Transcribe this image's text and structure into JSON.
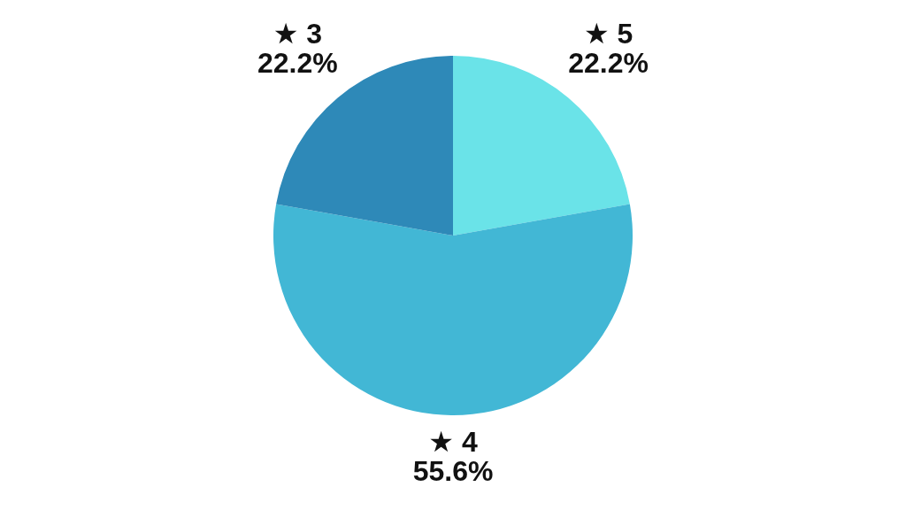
{
  "chart_data": {
    "type": "pie",
    "categories": [
      "★ 5",
      "★ 4",
      "★ 3"
    ],
    "values": [
      22.2,
      55.6,
      22.2
    ],
    "colors": [
      "#6ae3e8",
      "#42b7d5",
      "#2e89b8"
    ],
    "value_labels": [
      "22.2%",
      "55.6%",
      "22.2%"
    ]
  }
}
